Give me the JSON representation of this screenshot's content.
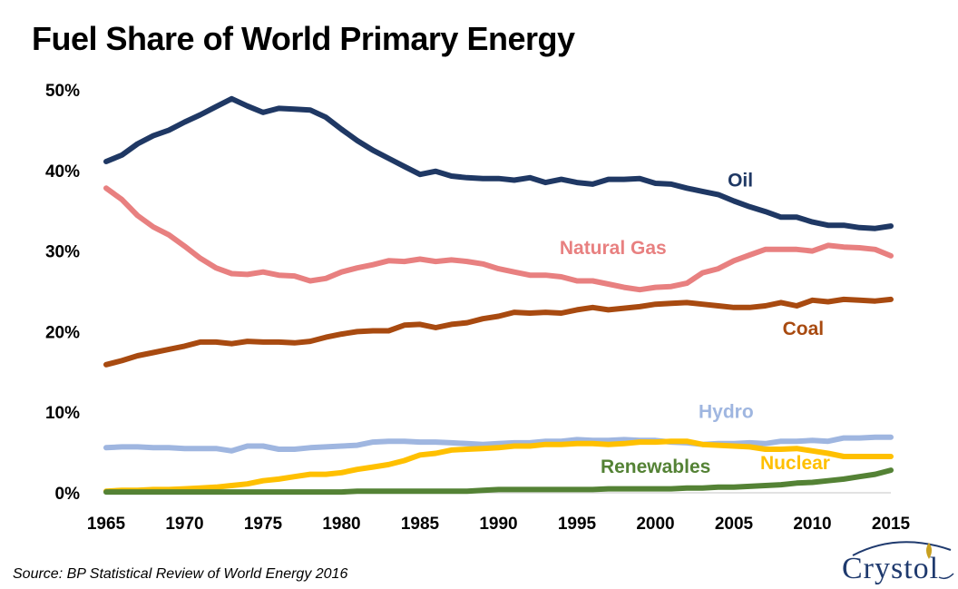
{
  "title": "Fuel Share of World Primary Energy",
  "source": "Source: BP Statistical Review of World Energy 2016",
  "logo": {
    "text": "Crystol"
  },
  "chart_data": {
    "type": "line",
    "title": "Fuel Share of World Primary Energy",
    "xlabel": "",
    "ylabel": "",
    "xlim": [
      1965,
      2015
    ],
    "ylim": [
      0,
      50
    ],
    "xticks": [
      "1965",
      "1970",
      "1975",
      "1980",
      "1985",
      "1990",
      "1995",
      "2000",
      "2005",
      "2010",
      "2015"
    ],
    "yticks": [
      "0%",
      "10%",
      "20%",
      "30%",
      "40%",
      "50%"
    ],
    "grid": false,
    "legend": "inline labels",
    "x": [
      1965,
      1966,
      1967,
      1968,
      1969,
      1970,
      1971,
      1972,
      1973,
      1974,
      1975,
      1976,
      1977,
      1978,
      1979,
      1980,
      1981,
      1982,
      1983,
      1984,
      1985,
      1986,
      1987,
      1988,
      1989,
      1990,
      1991,
      1992,
      1993,
      1994,
      1995,
      1996,
      1997,
      1998,
      1999,
      2000,
      2001,
      2002,
      2003,
      2004,
      2005,
      2006,
      2007,
      2008,
      2009,
      2010,
      2011,
      2012,
      2013,
      2014,
      2015
    ],
    "series": [
      {
        "name": "Oil",
        "color": "#1f3864",
        "values": [
          41.1,
          41.9,
          43.3,
          44.3,
          45.0,
          46.0,
          46.9,
          47.9,
          48.9,
          48.0,
          47.2,
          47.7,
          47.6,
          47.5,
          46.6,
          45.1,
          43.7,
          42.5,
          41.5,
          40.5,
          39.5,
          39.9,
          39.3,
          39.1,
          39.0,
          39.0,
          38.8,
          39.1,
          38.5,
          38.9,
          38.5,
          38.3,
          38.9,
          38.9,
          39.0,
          38.4,
          38.3,
          37.8,
          37.4,
          37.0,
          36.2,
          35.5,
          34.9,
          34.2,
          34.2,
          33.6,
          33.2,
          33.2,
          32.9,
          32.8,
          33.1
        ]
      },
      {
        "name": "Natural Gas",
        "color": "#e88080",
        "values": [
          37.8,
          36.4,
          34.4,
          33.0,
          32.0,
          30.6,
          29.1,
          27.9,
          27.2,
          27.1,
          27.4,
          27.0,
          26.9,
          26.3,
          26.6,
          27.4,
          27.9,
          28.3,
          28.8,
          28.7,
          29.0,
          28.7,
          28.9,
          28.7,
          28.4,
          27.8,
          27.4,
          27.0,
          27.0,
          26.8,
          26.3,
          26.3,
          25.9,
          25.5,
          25.2,
          25.5,
          25.6,
          26.0,
          27.3,
          27.8,
          28.8,
          29.5,
          30.2,
          30.2,
          30.2,
          30.0,
          30.7,
          30.5,
          30.4,
          30.2,
          29.4
        ]
      },
      {
        "name": "Coal",
        "color": "#a84a10",
        "values": [
          15.9,
          16.4,
          17.0,
          17.4,
          17.8,
          18.2,
          18.7,
          18.7,
          18.5,
          18.8,
          18.7,
          18.7,
          18.6,
          18.8,
          19.3,
          19.7,
          20.0,
          20.1,
          20.1,
          20.8,
          20.9,
          20.5,
          20.9,
          21.1,
          21.6,
          21.9,
          22.4,
          22.3,
          22.4,
          22.3,
          22.7,
          23.0,
          22.7,
          22.9,
          23.1,
          23.4,
          23.5,
          23.6,
          23.4,
          23.2,
          23.0,
          23.0,
          23.2,
          23.6,
          23.2,
          23.9,
          23.7,
          24.0,
          23.9,
          23.8,
          24.0
        ]
      },
      {
        "name": "Hydro",
        "color": "#9fb6e0",
        "values": [
          5.6,
          5.7,
          5.7,
          5.6,
          5.6,
          5.5,
          5.5,
          5.5,
          5.2,
          5.8,
          5.8,
          5.4,
          5.4,
          5.6,
          5.7,
          5.8,
          5.9,
          6.3,
          6.4,
          6.4,
          6.3,
          6.3,
          6.2,
          6.1,
          6.0,
          6.1,
          6.2,
          6.2,
          6.4,
          6.4,
          6.6,
          6.5,
          6.5,
          6.6,
          6.5,
          6.5,
          6.3,
          6.2,
          6.0,
          6.1,
          6.1,
          6.2,
          6.1,
          6.4,
          6.4,
          6.5,
          6.4,
          6.8,
          6.8,
          6.9,
          6.9
        ]
      },
      {
        "name": "Nuclear",
        "color": "#ffc000",
        "values": [
          0.2,
          0.3,
          0.3,
          0.4,
          0.4,
          0.5,
          0.6,
          0.7,
          0.9,
          1.1,
          1.5,
          1.7,
          2.0,
          2.3,
          2.3,
          2.5,
          2.9,
          3.2,
          3.5,
          4.0,
          4.7,
          4.9,
          5.3,
          5.4,
          5.5,
          5.6,
          5.8,
          5.8,
          6.0,
          6.0,
          6.1,
          6.1,
          6.0,
          6.1,
          6.3,
          6.3,
          6.4,
          6.4,
          6.0,
          5.9,
          5.8,
          5.7,
          5.4,
          5.4,
          5.5,
          5.2,
          4.9,
          4.5,
          4.5,
          4.5,
          4.5
        ]
      },
      {
        "name": "Renewables",
        "color": "#548235",
        "values": [
          0.1,
          0.1,
          0.1,
          0.1,
          0.1,
          0.1,
          0.1,
          0.1,
          0.1,
          0.1,
          0.1,
          0.1,
          0.1,
          0.1,
          0.1,
          0.1,
          0.2,
          0.2,
          0.2,
          0.2,
          0.2,
          0.2,
          0.2,
          0.2,
          0.3,
          0.4,
          0.4,
          0.4,
          0.4,
          0.4,
          0.4,
          0.4,
          0.5,
          0.5,
          0.5,
          0.5,
          0.5,
          0.6,
          0.6,
          0.7,
          0.7,
          0.8,
          0.9,
          1.0,
          1.2,
          1.3,
          1.5,
          1.7,
          2.0,
          2.3,
          2.8
        ]
      }
    ]
  }
}
